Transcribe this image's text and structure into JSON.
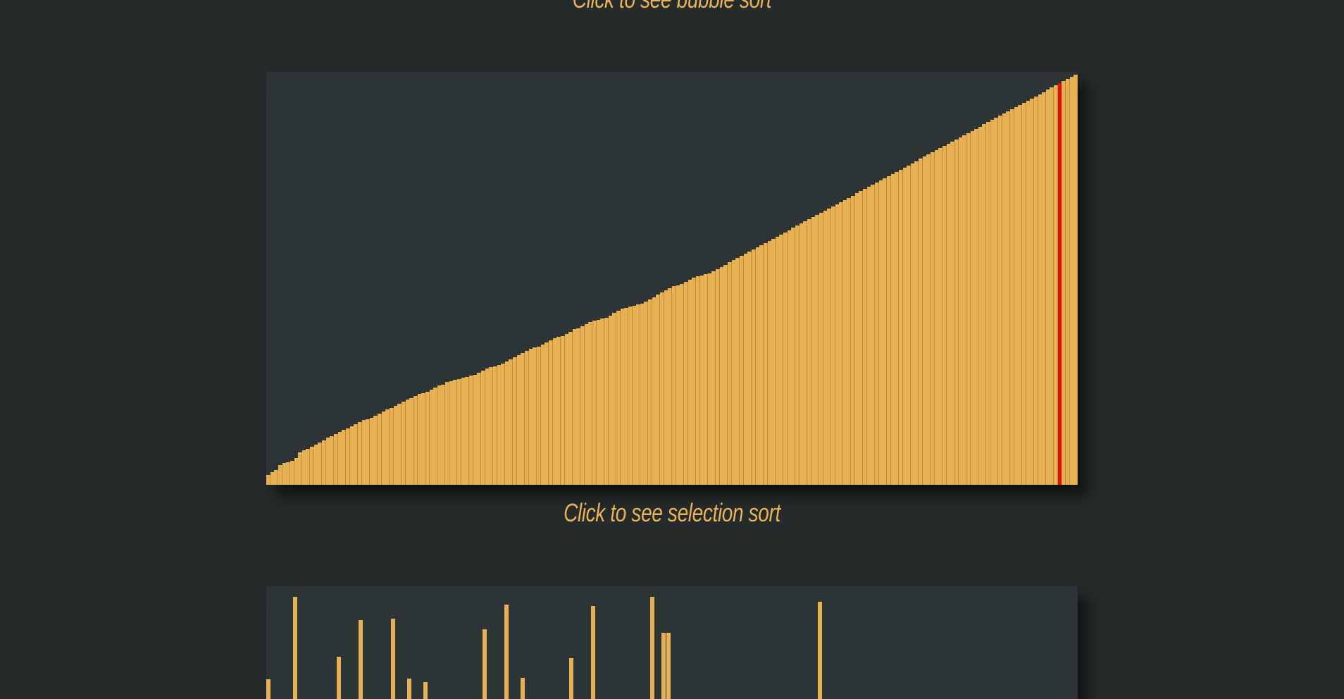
{
  "captions": {
    "bubble": "Click to see bubble sort",
    "selection": "Click to see selection sort"
  },
  "colors": {
    "background": "#252a2a",
    "panel": "#2d3436",
    "bar": "#e7b053",
    "active_bar": "#e00f0a",
    "caption": "#e9b257"
  },
  "bubble_sort": {
    "state": "sorted",
    "active_index": 199,
    "values": [
      9,
      12,
      14,
      18,
      20,
      21,
      22,
      25,
      30,
      32,
      33,
      35,
      37,
      39,
      41,
      44,
      45,
      47,
      49,
      51,
      52,
      54,
      56,
      58,
      60,
      61,
      62,
      64,
      66,
      68,
      70,
      71,
      73,
      75,
      77,
      79,
      80,
      82,
      84,
      85,
      86,
      88,
      90,
      92,
      93,
      95,
      96,
      97,
      98,
      99,
      100,
      101,
      102,
      104,
      106,
      108,
      109,
      110,
      111,
      112,
      114,
      116,
      118,
      120,
      122,
      124,
      126,
      127,
      128,
      130,
      132,
      134,
      136,
      137,
      138,
      140,
      142,
      144,
      145,
      147,
      149,
      151,
      152,
      153,
      154,
      155,
      157,
      159,
      161,
      163,
      164,
      165,
      166,
      167,
      168,
      170,
      172,
      174,
      176,
      178,
      180,
      182,
      184,
      185,
      186,
      188,
      190,
      192,
      193,
      194,
      195,
      196,
      198,
      200,
      202,
      204,
      206,
      208,
      210,
      212,
      214,
      216,
      218,
      220,
      222,
      224,
      226,
      228,
      230,
      232,
      234,
      236,
      238,
      240,
      242,
      244,
      246,
      248,
      250,
      252,
      254,
      256,
      258,
      260,
      262,
      264,
      266,
      268,
      270,
      272,
      274,
      276,
      278,
      280,
      282,
      284,
      286,
      288,
      290,
      292,
      294,
      296,
      298,
      300,
      302,
      304,
      306,
      308,
      310,
      312,
      314,
      316,
      318,
      320,
      322,
      324,
      326,
      328,
      330,
      332,
      334,
      336,
      338,
      340,
      342,
      344,
      346,
      348,
      350,
      352,
      354,
      356,
      358,
      360,
      362,
      364,
      366,
      368,
      370,
      372,
      374,
      376,
      378,
      380
    ]
  },
  "selection_sort": {
    "state": "unsorted",
    "values": [
      28,
      0,
      0,
      0,
      0,
      145,
      0,
      0,
      0,
      0,
      0,
      0,
      0,
      60,
      0,
      0,
      0,
      112,
      0,
      0,
      0,
      0,
      0,
      114,
      0,
      0,
      29,
      0,
      0,
      24,
      0,
      0,
      0,
      0,
      0,
      0,
      0,
      0,
      0,
      0,
      99,
      0,
      0,
      0,
      134,
      0,
      0,
      30,
      0,
      0,
      0,
      0,
      0,
      0,
      0,
      0,
      58,
      0,
      0,
      0,
      132,
      0,
      0,
      0,
      0,
      0,
      0,
      0,
      0,
      0,
      0,
      145,
      0,
      94,
      94,
      0,
      0,
      0,
      0,
      0,
      0,
      0,
      0,
      0,
      0,
      0,
      0,
      0,
      0,
      0,
      0,
      0,
      0,
      0,
      0,
      0,
      0,
      0,
      0,
      0,
      0,
      0,
      138,
      0,
      0,
      0,
      0,
      0,
      0,
      0,
      0,
      0,
      0,
      0,
      0,
      0,
      0,
      0,
      0,
      0,
      0,
      0,
      0,
      0,
      0,
      0,
      0,
      0,
      0,
      0,
      0,
      0,
      0,
      0,
      0,
      0,
      0,
      0,
      0,
      0,
      0,
      0,
      0,
      0,
      0,
      0,
      0,
      0,
      0,
      0
    ]
  }
}
